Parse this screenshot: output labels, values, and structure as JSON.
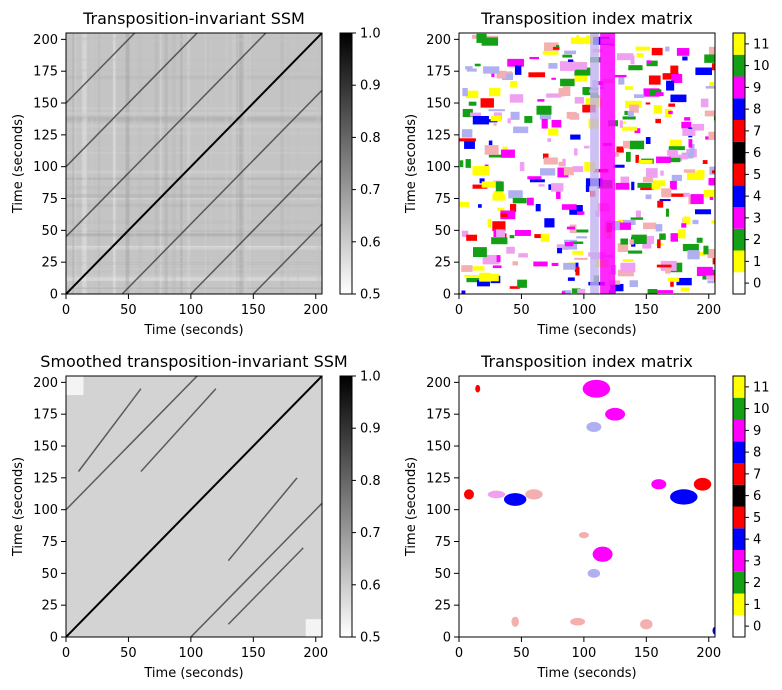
{
  "chart_data": [
    {
      "type": "heatmap",
      "title": "Transposition-invariant SSM",
      "xlabel": "Time (seconds)",
      "ylabel": "Time (seconds)",
      "xlim": [
        0,
        205
      ],
      "ylim": [
        0,
        205
      ],
      "xticks": [
        0,
        50,
        100,
        150,
        200
      ],
      "yticks": [
        0,
        25,
        50,
        75,
        100,
        125,
        150,
        175,
        200
      ],
      "colorbar": {
        "colormap": "gray_r",
        "range": [
          0.5,
          1.0
        ],
        "ticks": [
          "0.5",
          "0.6",
          "0.7",
          "0.8",
          "0.9",
          "1.0"
        ]
      },
      "pattern": "raw",
      "diagonal_lines": [
        {
          "x": [
            0,
            205
          ],
          "y": [
            0,
            205
          ]
        },
        {
          "x": [
            0,
            105
          ],
          "y": [
            100,
            205
          ]
        },
        {
          "x": [
            100,
            205
          ],
          "y": [
            0,
            105
          ]
        },
        {
          "x": [
            0,
            160
          ],
          "y": [
            45,
            205
          ]
        },
        {
          "x": [
            45,
            205
          ],
          "y": [
            0,
            160
          ]
        },
        {
          "x": [
            0,
            55
          ],
          "y": [
            150,
            205
          ]
        },
        {
          "x": [
            150,
            205
          ],
          "y": [
            0,
            55
          ]
        }
      ]
    },
    {
      "type": "heatmap",
      "title": "Transposition index matrix",
      "xlabel": "Time (seconds)",
      "ylabel": "Time (seconds)",
      "xlim": [
        0,
        205
      ],
      "ylim": [
        0,
        205
      ],
      "xticks": [
        0,
        50,
        100,
        150,
        200
      ],
      "yticks": [
        0,
        25,
        50,
        75,
        100,
        125,
        150,
        175,
        200
      ],
      "colorbar": {
        "categories": [
          "0",
          "1",
          "2",
          "3",
          "4",
          "5",
          "6",
          "7",
          "8",
          "9",
          "10",
          "11"
        ],
        "colors": [
          "#ffffff",
          "#ffff00",
          "#14a014",
          "#ff00ff",
          "#0000ff",
          "#ff0000",
          "#000000",
          "#ff0000",
          "#0000ff",
          "#ff00ff",
          "#14a014",
          "#ffff00"
        ]
      },
      "pattern": "dense"
    },
    {
      "type": "heatmap",
      "title": "Smoothed transposition-invariant SSM",
      "xlabel": "Time (seconds)",
      "ylabel": "Time (seconds)",
      "xlim": [
        0,
        205
      ],
      "ylim": [
        0,
        205
      ],
      "xticks": [
        0,
        50,
        100,
        150,
        200
      ],
      "yticks": [
        0,
        25,
        50,
        75,
        100,
        125,
        150,
        175,
        200
      ],
      "colorbar": {
        "colormap": "gray_r",
        "range": [
          0.5,
          1.0
        ],
        "ticks": [
          "0.5",
          "0.6",
          "0.7",
          "0.8",
          "0.9",
          "1.0"
        ]
      },
      "pattern": "smooth",
      "diagonal_lines": [
        {
          "x": [
            0,
            205
          ],
          "y": [
            0,
            205
          ]
        },
        {
          "x": [
            0,
            105
          ],
          "y": [
            100,
            205
          ]
        },
        {
          "x": [
            100,
            205
          ],
          "y": [
            0,
            105
          ]
        },
        {
          "x": [
            10,
            60
          ],
          "y": [
            130,
            195
          ]
        },
        {
          "x": [
            60,
            120
          ],
          "y": [
            130,
            195
          ]
        },
        {
          "x": [
            130,
            185
          ],
          "y": [
            60,
            125
          ]
        },
        {
          "x": [
            130,
            190
          ],
          "y": [
            10,
            70
          ]
        }
      ]
    },
    {
      "type": "heatmap",
      "title": "Transposition index matrix",
      "xlabel": "Time (seconds)",
      "ylabel": "Time (seconds)",
      "xlim": [
        0,
        205
      ],
      "ylim": [
        0,
        205
      ],
      "xticks": [
        0,
        50,
        100,
        150,
        200
      ],
      "yticks": [
        0,
        25,
        50,
        75,
        100,
        125,
        150,
        175,
        200
      ],
      "colorbar": {
        "categories": [
          "0",
          "1",
          "2",
          "3",
          "4",
          "5",
          "6",
          "7",
          "8",
          "9",
          "10",
          "11"
        ],
        "colors": [
          "#ffffff",
          "#ffff00",
          "#14a014",
          "#ff00ff",
          "#0000ff",
          "#ff0000",
          "#000000",
          "#ff0000",
          "#0000ff",
          "#ff00ff",
          "#14a014",
          "#ffff00"
        ]
      },
      "pattern": "sparse"
    }
  ]
}
